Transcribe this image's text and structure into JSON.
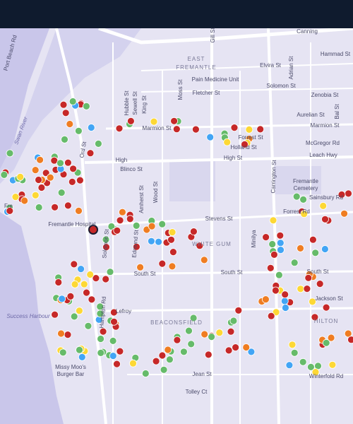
{
  "map": {
    "labels": [
      "Port Beach Rd",
      "Gill St",
      "Canning",
      "EAST",
      "FREMANTLE",
      "Hammad St",
      "Elvira St",
      "Adrian St",
      "Pain Medicine Unit",
      "Solomon St",
      "Moss St",
      "Fletcher St",
      "Zenobia St",
      "Hubble St",
      "Sewell St",
      "King St",
      "Aurelian St",
      "Swan River",
      "Marmion St",
      "Marmion St",
      "Forrest St",
      "McGregor Rd",
      "Holland St",
      "Ord St",
      "High",
      "High St",
      "Leach Hwy",
      "Blinco St",
      "Fremantle",
      "Cemetery",
      "Amherst St",
      "Wood St",
      "Carrington St",
      "Sainsbury Rd",
      "Fre",
      "Fremantle Hospital",
      "Stevens St",
      "Forrest Rd",
      "Solomon St",
      "Edmund St",
      "WHITE GUM",
      "Minilya",
      "South St",
      "South St",
      "South St",
      "Jackson St",
      "Lefroy",
      "Hampton Rd",
      "BEACONSFIELD",
      "HILTON",
      "Success Harbour",
      "Missy Moo's",
      "Burger Bar",
      "Winterfold Rd",
      "Jean St",
      "Tolley Ct",
      "Bal St"
    ]
  }
}
